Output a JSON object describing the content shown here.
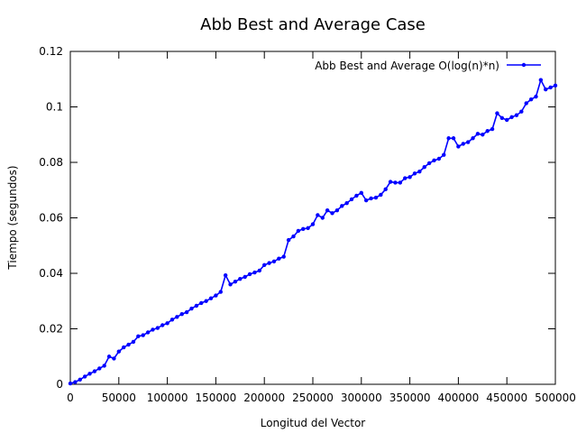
{
  "chart_data": {
    "type": "line",
    "title": "Abb Best and Average Case",
    "xlabel": "Longitud del Vector",
    "ylabel": "Tiempo (segundos)",
    "xlim": [
      0,
      500000
    ],
    "ylim": [
      0,
      0.12
    ],
    "grid": false,
    "legend_position": "top-right",
    "xticks": [
      0,
      50000,
      100000,
      150000,
      200000,
      250000,
      300000,
      350000,
      400000,
      450000,
      500000
    ],
    "xtick_labels": [
      "0",
      "50000",
      "100000",
      "150000",
      "200000",
      "250000",
      "300000",
      "350000",
      "400000",
      "450000",
      "500000"
    ],
    "yticks": [
      0,
      0.02,
      0.04,
      0.06,
      0.08,
      0.1,
      0.12
    ],
    "ytick_labels": [
      "0",
      "0.02",
      "0.04",
      "0.06",
      "0.08",
      "0.1",
      "0.12"
    ],
    "series": [
      {
        "name": "Abb Best and Average O(log(n)*n)",
        "color": "#0000ff",
        "x": [
          0,
          5000,
          10000,
          15000,
          20000,
          25000,
          30000,
          35000,
          40000,
          45000,
          50000,
          55000,
          60000,
          65000,
          70000,
          75000,
          80000,
          85000,
          90000,
          95000,
          100000,
          105000,
          110000,
          115000,
          120000,
          125000,
          130000,
          135000,
          140000,
          145000,
          150000,
          155000,
          160000,
          165000,
          170000,
          175000,
          180000,
          185000,
          190000,
          195000,
          200000,
          205000,
          210000,
          215000,
          220000,
          225000,
          230000,
          235000,
          240000,
          245000,
          250000,
          255000,
          260000,
          265000,
          270000,
          275000,
          280000,
          285000,
          290000,
          295000,
          300000,
          305000,
          310000,
          315000,
          320000,
          325000,
          330000,
          335000,
          340000,
          345000,
          350000,
          355000,
          360000,
          365000,
          370000,
          375000,
          380000,
          385000,
          390000,
          395000,
          400000,
          405000,
          410000,
          415000,
          420000,
          425000,
          430000,
          435000,
          440000,
          445000,
          450000,
          455000,
          460000,
          465000,
          470000,
          475000,
          480000,
          485000,
          490000,
          495000,
          500000
        ],
        "y": [
          0.0003,
          0.0008,
          0.0017,
          0.0028,
          0.0038,
          0.0047,
          0.0057,
          0.0067,
          0.01,
          0.0093,
          0.0118,
          0.0133,
          0.0143,
          0.0153,
          0.0173,
          0.0177,
          0.0187,
          0.0197,
          0.0203,
          0.0213,
          0.022,
          0.0233,
          0.0243,
          0.0253,
          0.026,
          0.0273,
          0.0283,
          0.0293,
          0.03,
          0.031,
          0.032,
          0.0333,
          0.0393,
          0.036,
          0.037,
          0.038,
          0.0387,
          0.0397,
          0.0403,
          0.041,
          0.043,
          0.0437,
          0.0443,
          0.0453,
          0.046,
          0.052,
          0.0533,
          0.0553,
          0.056,
          0.0563,
          0.0577,
          0.061,
          0.06,
          0.0627,
          0.0617,
          0.0627,
          0.0643,
          0.0653,
          0.0667,
          0.068,
          0.069,
          0.0663,
          0.067,
          0.0673,
          0.0683,
          0.0703,
          0.073,
          0.0727,
          0.0727,
          0.0743,
          0.0747,
          0.076,
          0.0767,
          0.0783,
          0.0797,
          0.0807,
          0.0813,
          0.0827,
          0.0887,
          0.0887,
          0.0857,
          0.0867,
          0.0873,
          0.0887,
          0.0903,
          0.09,
          0.0913,
          0.092,
          0.0977,
          0.096,
          0.0953,
          0.0963,
          0.097,
          0.0983,
          0.1013,
          0.1027,
          0.1037,
          0.1097,
          0.1063,
          0.107,
          0.1077
        ]
      }
    ]
  }
}
